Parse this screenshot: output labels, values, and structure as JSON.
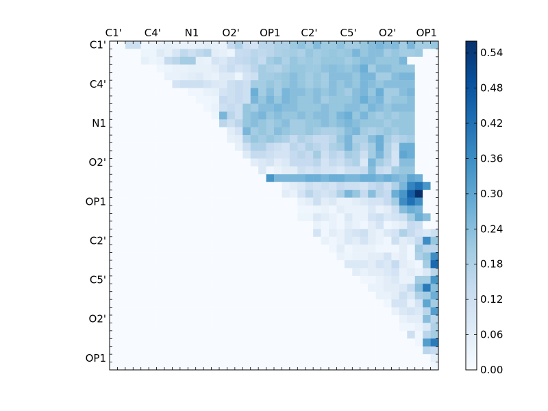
{
  "chart_data": {
    "type": "heatmap",
    "title": "",
    "xlabel": "",
    "ylabel": "",
    "size": 42,
    "tick_labels": [
      "C1'",
      "C4'",
      "N1",
      "O2'",
      "OP1",
      "C2'",
      "C5'",
      "O2'",
      "OP1"
    ],
    "tick_indices": [
      0,
      5,
      10,
      15,
      20,
      25,
      30,
      35,
      40
    ],
    "colormap": "Blues",
    "vmin": 0.0,
    "vmax": 0.56,
    "colorbar": {
      "ticks": [
        "0.00",
        "0.06",
        "0.12",
        "0.18",
        "0.24",
        "0.30",
        "0.36",
        "0.42",
        "0.48",
        "0.54"
      ]
    },
    "upper_triangle_rows": [
      [
        2,
        0.12,
        0.12,
        0.02,
        0.03,
        0.04,
        0.05,
        0.04,
        0.04,
        0.04,
        0.05,
        0.06,
        0.05,
        0.04,
        0.14,
        0.18,
        0.12,
        0.1,
        0.16,
        0.16,
        0.18,
        0.18,
        0.21,
        0.23,
        0.2,
        0.25,
        0.21,
        0.21,
        0.23,
        0.2,
        0.2,
        0.22,
        0.24,
        0.26,
        0.24,
        0.25,
        0.2,
        0.26,
        0.2,
        0.2,
        0.22
      ],
      [
        4,
        0.03,
        0.03,
        0.07,
        0.05,
        0.09,
        0.15,
        0.12,
        0.15,
        0.17,
        0.06,
        0.05,
        0.03,
        0.13,
        0.14,
        0.16,
        0.15,
        0.16,
        0.18,
        0.19,
        0.2,
        0.18,
        0.22,
        0.2,
        0.21,
        0.22,
        0.21,
        0.22,
        0.26,
        0.22,
        0.24,
        0.24,
        0.2,
        0.22,
        0.2,
        0.2,
        0.21
      ],
      [
        4,
        0.05,
        0.03,
        0.04,
        0.14,
        0.16,
        0.2,
        0.2,
        0.05,
        0.04,
        0.1,
        0.08,
        0.12,
        0.14,
        0.15,
        0.17,
        0.14,
        0.2,
        0.22,
        0.18,
        0.22,
        0.2,
        0.21,
        0.2,
        0.22,
        0.22,
        0.22,
        0.2,
        0.22,
        0.24,
        0.24,
        0.22,
        0.22,
        0.22,
        0.26
      ],
      [
        6,
        0.02,
        0.03,
        0.04,
        0.04,
        0.05,
        0.05,
        0.05,
        0.06,
        0.1,
        0.13,
        0.1,
        0.12,
        0.16,
        0.2,
        0.18,
        0.17,
        0.2,
        0.22,
        0.22,
        0.21,
        0.21,
        0.23,
        0.24,
        0.23,
        0.22,
        0.24,
        0.28,
        0.2,
        0.24,
        0.24,
        0.22,
        0.22,
        0.22
      ],
      [
        7,
        0.04,
        0.04,
        0.05,
        0.06,
        0.07,
        0.05,
        0.04,
        0.07,
        0.07,
        0.03,
        0.1,
        0.12,
        0.2,
        0.2,
        0.21,
        0.22,
        0.24,
        0.22,
        0.2,
        0.22,
        0.2,
        0.24,
        0.24,
        0.24,
        0.22,
        0.26,
        0.26,
        0.2,
        0.2,
        0.24,
        0.26,
        0.26
      ],
      [
        8,
        0.1,
        0.12,
        0.12,
        0.12,
        0.1,
        0.08,
        0.07,
        0.12,
        0.14,
        0.12,
        0.2,
        0.2,
        0.22,
        0.2,
        0.22,
        0.24,
        0.22,
        0.2,
        0.22,
        0.2,
        0.24,
        0.22,
        0.24,
        0.22,
        0.26,
        0.24,
        0.22,
        0.24,
        0.24,
        0.24,
        0.24
      ],
      [
        10,
        0.02,
        0.02,
        0.04,
        0.05,
        0.1,
        0.12,
        0.14,
        0.12,
        0.28,
        0.2,
        0.24,
        0.2,
        0.26,
        0.24,
        0.24,
        0.22,
        0.24,
        0.22,
        0.24,
        0.22,
        0.2,
        0.24,
        0.26,
        0.22,
        0.28,
        0.2,
        0.2,
        0.24,
        0.26
      ],
      [
        11,
        0.02,
        0.02,
        0.03,
        0.14,
        0.12,
        0.14,
        0.12,
        0.26,
        0.22,
        0.26,
        0.22,
        0.26,
        0.24,
        0.22,
        0.22,
        0.24,
        0.2,
        0.22,
        0.22,
        0.22,
        0.24,
        0.28,
        0.24,
        0.26,
        0.2,
        0.22,
        0.22,
        0.24
      ],
      [
        12,
        0.02,
        0.04,
        0.12,
        0.14,
        0.12,
        0.22,
        0.2,
        0.24,
        0.24,
        0.26,
        0.24,
        0.24,
        0.22,
        0.22,
        0.22,
        0.24,
        0.22,
        0.22,
        0.24,
        0.24,
        0.22,
        0.26,
        0.24,
        0.22,
        0.24,
        0.24,
        0.24
      ],
      [
        13,
        0.03,
        0.26,
        0.16,
        0.12,
        0.22,
        0.24,
        0.26,
        0.22,
        0.24,
        0.22,
        0.22,
        0.24,
        0.22,
        0.24,
        0.24,
        0.22,
        0.26,
        0.28,
        0.22,
        0.26,
        0.22,
        0.2,
        0.22,
        0.2,
        0.22,
        0.22
      ],
      [
        14,
        0.16,
        0.12,
        0.16,
        0.22,
        0.24,
        0.22,
        0.2,
        0.22,
        0.24,
        0.2,
        0.2,
        0.22,
        0.22,
        0.24,
        0.22,
        0.24,
        0.26,
        0.24,
        0.22,
        0.22,
        0.22,
        0.2,
        0.22,
        0.22,
        0.22
      ],
      [
        15,
        0.06,
        0.1,
        0.26,
        0.2,
        0.22,
        0.2,
        0.24,
        0.22,
        0.2,
        0.2,
        0.22,
        0.2,
        0.18,
        0.18,
        0.2,
        0.24,
        0.26,
        0.2,
        0.18,
        0.2,
        0.22,
        0.2,
        0.22,
        0.22
      ],
      [
        15,
        0.05,
        0.06,
        0.18,
        0.22,
        0.2,
        0.22,
        0.2,
        0.18,
        0.14,
        0.18,
        0.16,
        0.14,
        0.14,
        0.16,
        0.22,
        0.26,
        0.18,
        0.18,
        0.24,
        0.28,
        0.2,
        0.16,
        0.18,
        0.2
      ],
      [
        16,
        0.05,
        0.12,
        0.18,
        0.18,
        0.14,
        0.12,
        0.1,
        0.16,
        0.14,
        0.18,
        0.16,
        0.14,
        0.18,
        0.2,
        0.26,
        0.2,
        0.16,
        0.2,
        0.28,
        0.18,
        0.12,
        0.28,
        0.28
      ],
      [
        17,
        0.07,
        0.14,
        0.14,
        0.12,
        0.1,
        0.1,
        0.14,
        0.16,
        0.14,
        0.2,
        0.12,
        0.16,
        0.14,
        0.2,
        0.18,
        0.12,
        0.2,
        0.26,
        0.18,
        0.1,
        0.3,
        0.28
      ],
      [
        18,
        0.06,
        0.08,
        0.1,
        0.06,
        0.08,
        0.14,
        0.14,
        0.14,
        0.16,
        0.1,
        0.14,
        0.12,
        0.16,
        0.18,
        0.08,
        0.26,
        0.2,
        0.16,
        0.1,
        0.24,
        0.24
      ],
      [
        19,
        0.08,
        0.02,
        0.04,
        0.06,
        0.06,
        0.12,
        0.1,
        0.12,
        0.1,
        0.1,
        0.08,
        0.12,
        0.12,
        0.14,
        0.24,
        0.14,
        0.12,
        0.2,
        0.22,
        0.22
      ],
      [
        20,
        0.34,
        0.26,
        0.26,
        0.26,
        0.26,
        0.28,
        0.28,
        0.26,
        0.28,
        0.28,
        0.26,
        0.26,
        0.28,
        0.28,
        0.26,
        0.28,
        0.26,
        0.24,
        0.3,
        0.28
      ],
      [
        22,
        0.04,
        0.06,
        0.08,
        0.12,
        0.1,
        0.12,
        0.1,
        0.14,
        0.12,
        0.12,
        0.1,
        0.14,
        0.16,
        0.12,
        0.18,
        0.26,
        0.38,
        0.42,
        0.34
      ],
      [
        22,
        0.06,
        0.04,
        0.1,
        0.16,
        0.12,
        0.1,
        0.12,
        0.18,
        0.26,
        0.22,
        0.14,
        0.24,
        0.16,
        0.14,
        0.28,
        0.34,
        0.46,
        0.56
      ],
      [
        24,
        0.04,
        0.06,
        0.12,
        0.06,
        0.08,
        0.04,
        0.04,
        0.06,
        0.08,
        0.1,
        0.1,
        0.14,
        0.2,
        0.36,
        0.42,
        0.36
      ],
      [
        24,
        0.02,
        0.02,
        0.03,
        0.04,
        0.02,
        0.06,
        0.04,
        0.04,
        0.04,
        0.08,
        0.04,
        0.06,
        0.12,
        0.24,
        0.28,
        0.26
      ],
      [
        24,
        0.03,
        0.03,
        0.08,
        0.06,
        0.04,
        0.02,
        0.08,
        0.04,
        0.04,
        0.1,
        0.12,
        0.08,
        0.1,
        0.12,
        0.2,
        0.28,
        0.24
      ],
      [
        26,
        0.04,
        0.02,
        0.04,
        0.02,
        0.06,
        0.04,
        0.02,
        0.06,
        0.1,
        0.02,
        0.04,
        0.06,
        0.14,
        0.12
      ],
      [
        26,
        0.1,
        0.02,
        0.06,
        0.04,
        0.08,
        0.1,
        0.12,
        0.06,
        0.04,
        0.08,
        0.1,
        0.18,
        0.14,
        0.1,
        0.08,
        0.12
      ],
      [
        27,
        0.04,
        0.02,
        0.04,
        0.08,
        0.06,
        0.1,
        0.06,
        0.04,
        0.02,
        0.12,
        0.06,
        0.08,
        0.14,
        0.36,
        0.22
      ],
      [
        28,
        0.02,
        0.06,
        0.02,
        0.04,
        0.04,
        0.04,
        0.02,
        0.02,
        0.02,
        0.06,
        0.02,
        0.2,
        0.16,
        0.16
      ],
      [
        29,
        0.04,
        0.03,
        0.04,
        0.04,
        0.06,
        0.06,
        0.1,
        0.04,
        0.06,
        0.02,
        0.18,
        0.22,
        0.36,
        0.22
      ],
      [
        30,
        0.08,
        0.08,
        0.08,
        0.06,
        0.1,
        0.08,
        0.14,
        0.06,
        0.04,
        0.02,
        0.2,
        0.44,
        0.28
      ],
      [
        31,
        0.06,
        0.04,
        0.06,
        0.06,
        0.08,
        0.1,
        0.04,
        0.06,
        0.04,
        0.08,
        0.16,
        0.14
      ],
      [
        32,
        0.02,
        0.02,
        0.04,
        0.06,
        0.08,
        0.04,
        0.04,
        0.2,
        0.2,
        0.34,
        0.24
      ],
      [
        33,
        0.04,
        0.04,
        0.06,
        0.06,
        0.08,
        0.14,
        0.24,
        0.4,
        0.24
      ],
      [
        34,
        0.04,
        0.04,
        0.06,
        0.12,
        0.08,
        0.18,
        0.2,
        0.28,
        0.32
      ],
      [
        35,
        0.02,
        0.1,
        0.1,
        0.04,
        0.1,
        0.3,
        0.2
      ],
      [
        36,
        0.04,
        0.08,
        0.1,
        0.08,
        0.16,
        0.32,
        0.24
      ],
      [
        37,
        0.04,
        0.06,
        0.06,
        0.24,
        0.16,
        0.18
      ],
      [
        37,
        0.02,
        0.02,
        0.04,
        0.08,
        0.18,
        0.16
      ],
      [
        38,
        0.12,
        0.02,
        0.16,
        0.2,
        0.16
      ],
      [
        39,
        0.02,
        0.32,
        0.4,
        0.38
      ],
      [
        40,
        0.16,
        0.14,
        0.1
      ],
      [
        41,
        0.05
      ],
      [
        41,
        0.02
      ]
    ]
  }
}
